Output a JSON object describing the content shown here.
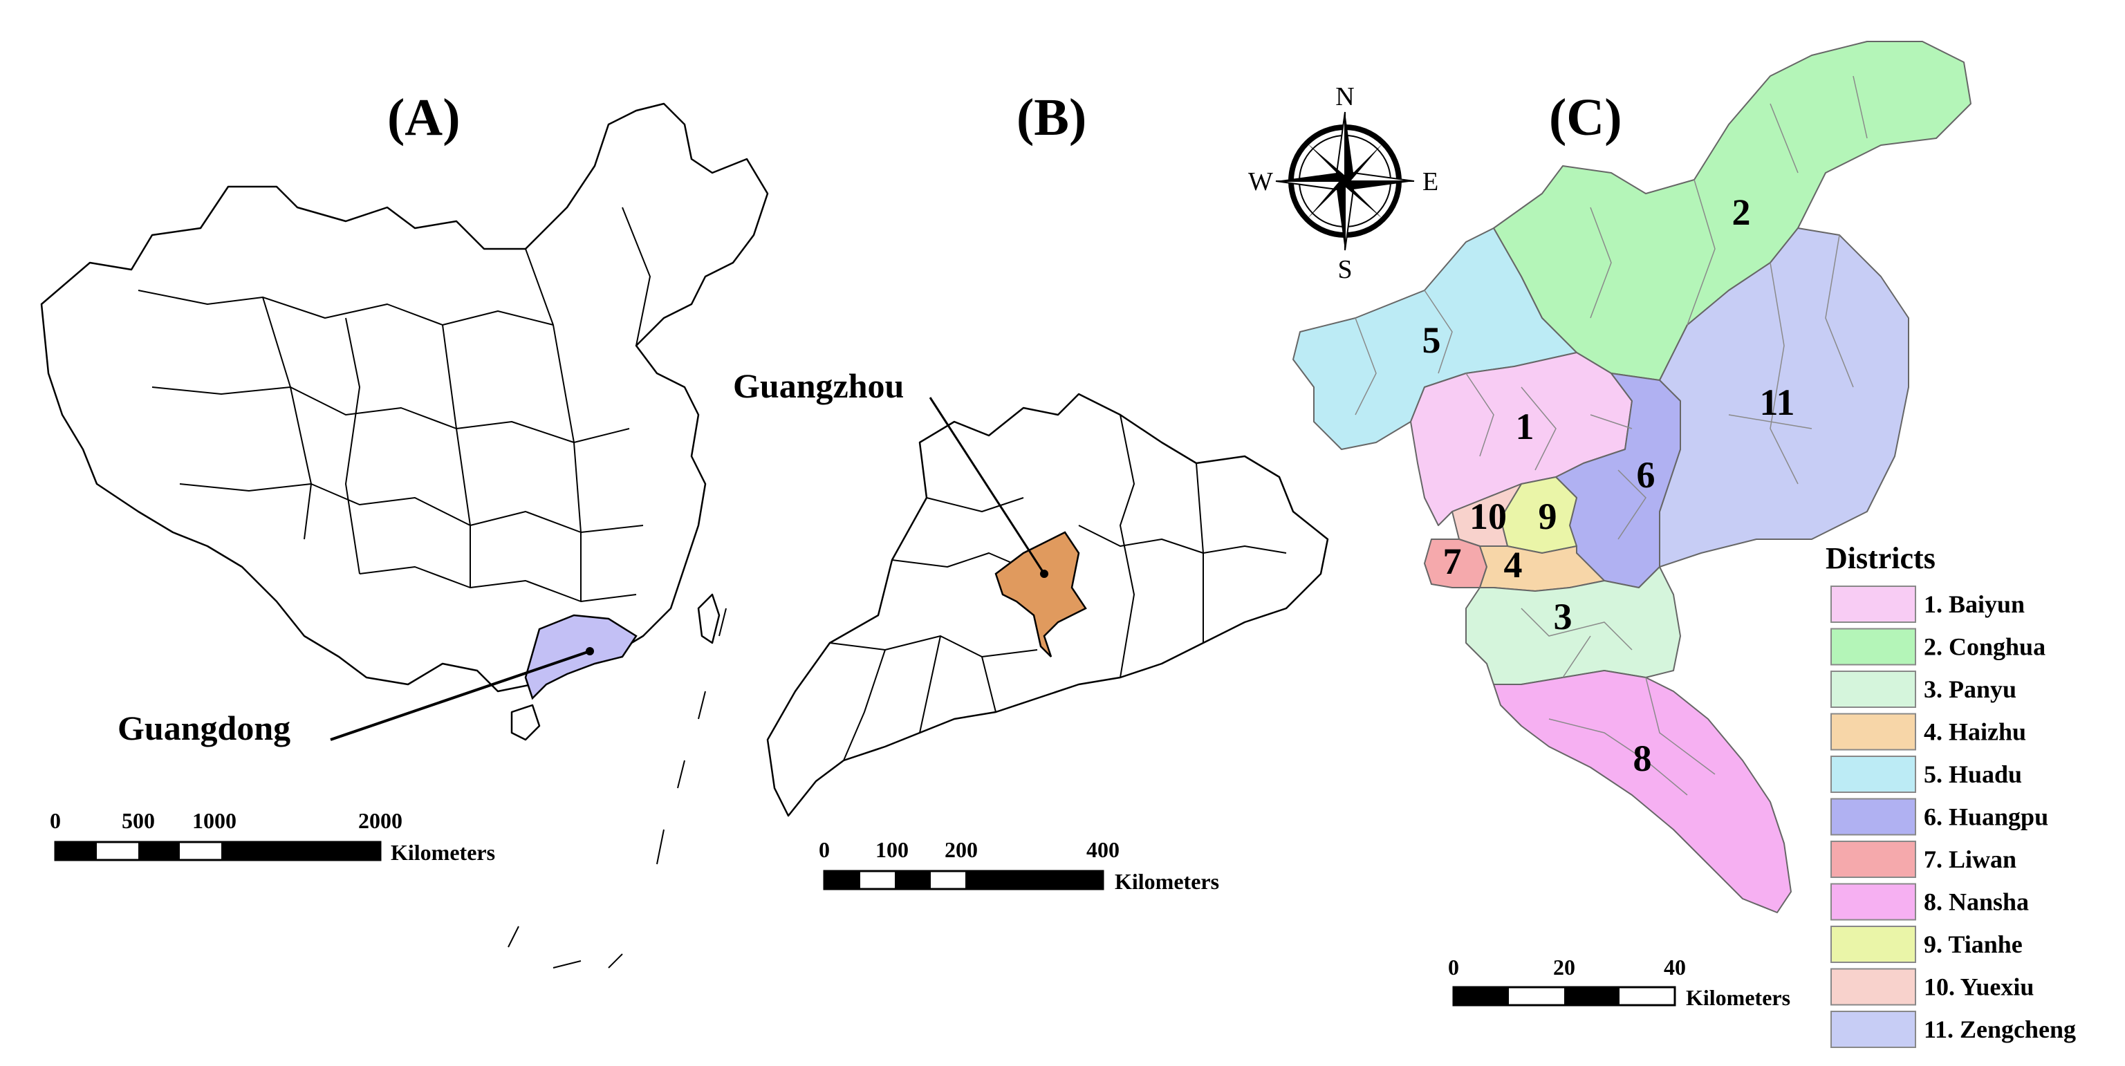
{
  "panels": {
    "a": {
      "label": "(A)",
      "callout": "Guangdong",
      "highlight_color": "#c3c0f5"
    },
    "b": {
      "label": "(B)",
      "callout": "Guangzhou",
      "highlight_color": "#e09a5e"
    },
    "c": {
      "label": "(C)"
    }
  },
  "scale_a": {
    "ticks": [
      "0",
      "500",
      "1000",
      "2000"
    ],
    "unit": "Kilometers"
  },
  "scale_b": {
    "ticks": [
      "0",
      "100",
      "200",
      "400"
    ],
    "unit": "Kilometers"
  },
  "scale_c": {
    "ticks": [
      "0",
      "20",
      "40"
    ],
    "unit": "Kilometers"
  },
  "compass": {
    "n": "N",
    "s": "S",
    "e": "E",
    "w": "W"
  },
  "legend": {
    "title": "Districts",
    "items": [
      {
        "num": "1",
        "label": "1. Baiyun",
        "color": "#f8ccf4"
      },
      {
        "num": "2",
        "label": "2. Conghua",
        "color": "#b4f5b8"
      },
      {
        "num": "3",
        "label": "3. Panyu",
        "color": "#d5f5dc"
      },
      {
        "num": "4",
        "label": "4. Haizhu",
        "color": "#f7d6a8"
      },
      {
        "num": "5",
        "label": "5. Huadu",
        "color": "#bcebf5"
      },
      {
        "num": "6",
        "label": "6. Huangpu",
        "color": "#b0b1f2"
      },
      {
        "num": "7",
        "label": "7. Liwan",
        "color": "#f5a9ac"
      },
      {
        "num": "8",
        "label": "8. Nansha",
        "color": "#f6b0f2"
      },
      {
        "num": "9",
        "label": "9. Tianhe",
        "color": "#eaf5a8"
      },
      {
        "num": "10",
        "label": "10. Yuexiu",
        "color": "#f8d2cc"
      },
      {
        "num": "11",
        "label": "11. Zengcheng",
        "color": "#c7cdf5"
      }
    ]
  }
}
